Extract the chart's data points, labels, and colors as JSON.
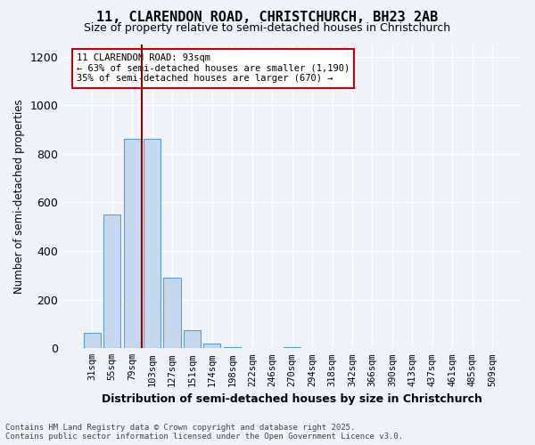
{
  "title_line1": "11, CLARENDON ROAD, CHRISTCHURCH, BH23 2AB",
  "title_line2": "Size of property relative to semi-detached houses in Christchurch",
  "xlabel": "Distribution of semi-detached houses by size in Christchurch",
  "ylabel": "Number of semi-detached properties",
  "categories": [
    "31sqm",
    "55sqm",
    "79sqm",
    "103sqm",
    "127sqm",
    "151sqm",
    "174sqm",
    "198sqm",
    "222sqm",
    "246sqm",
    "270sqm",
    "294sqm",
    "318sqm",
    "342sqm",
    "366sqm",
    "390sqm",
    "413sqm",
    "437sqm",
    "461sqm",
    "485sqm",
    "509sqm"
  ],
  "values": [
    65,
    550,
    860,
    860,
    290,
    75,
    20,
    5,
    0,
    0,
    5,
    0,
    0,
    0,
    0,
    0,
    0,
    0,
    0,
    0,
    0
  ],
  "bar_color": "#c5d8f0",
  "bar_edge_color": "#5a9fd4",
  "property_line_x": 2.5,
  "property_sqm": "93sqm",
  "pct_smaller": 63,
  "pct_larger": 35,
  "n_smaller": 1190,
  "n_larger": 670,
  "annotation_text_line1": "11 CLARENDON ROAD: 93sqm",
  "annotation_text_line2": "← 63% of semi-detached houses are smaller (1,190)",
  "annotation_text_line3": "35% of semi-detached houses are larger (670) →",
  "vline_color": "#8b0000",
  "ylim": [
    0,
    1250
  ],
  "yticks": [
    0,
    200,
    400,
    600,
    800,
    1000,
    1200
  ],
  "background_color": "#f0f4fa",
  "grid_color": "#ffffff",
  "footer_line1": "Contains HM Land Registry data © Crown copyright and database right 2025.",
  "footer_line2": "Contains public sector information licensed under the Open Government Licence v3.0."
}
